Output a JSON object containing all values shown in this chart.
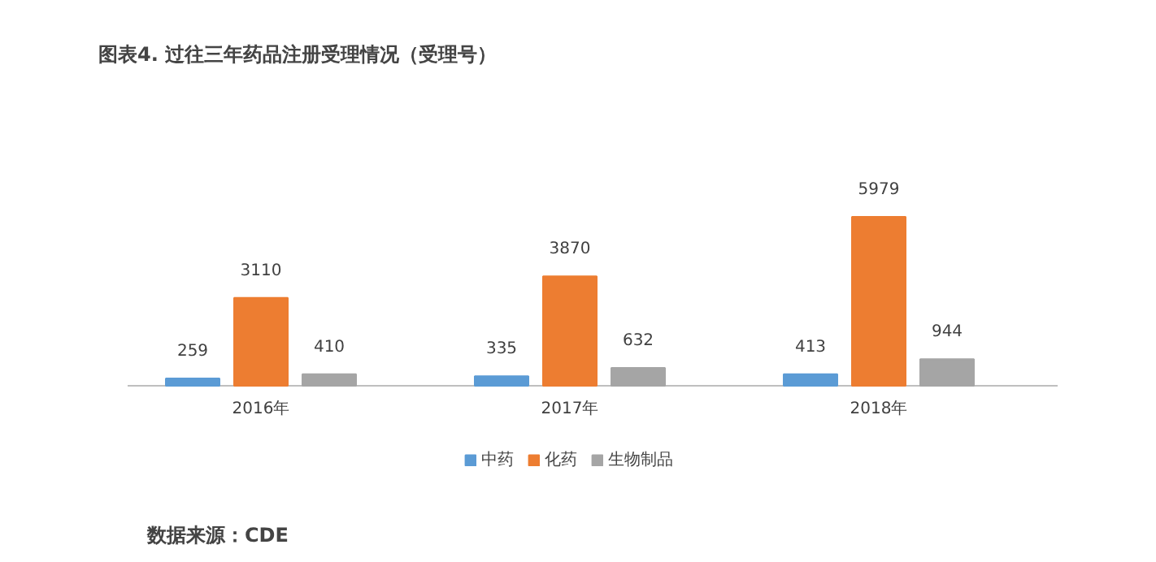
{
  "chart_data": {
    "type": "bar",
    "title": "图表4.    过往三年药品注册受理情况（受理号）",
    "categories": [
      "2016年",
      "2017年",
      "2018年"
    ],
    "series": [
      {
        "name": "中药",
        "color": "#5b9bd5",
        "values": [
          259,
          335,
          413
        ]
      },
      {
        "name": "化药",
        "color": "#ed7d31",
        "values": [
          3110,
          3870,
          5979
        ]
      },
      {
        "name": "生物制品",
        "color": "#a5a5a5",
        "values": [
          410,
          632,
          944
        ]
      }
    ],
    "data_labels": true,
    "legend": "bottom",
    "annotations": [
      "数据来源：CDE"
    ]
  }
}
